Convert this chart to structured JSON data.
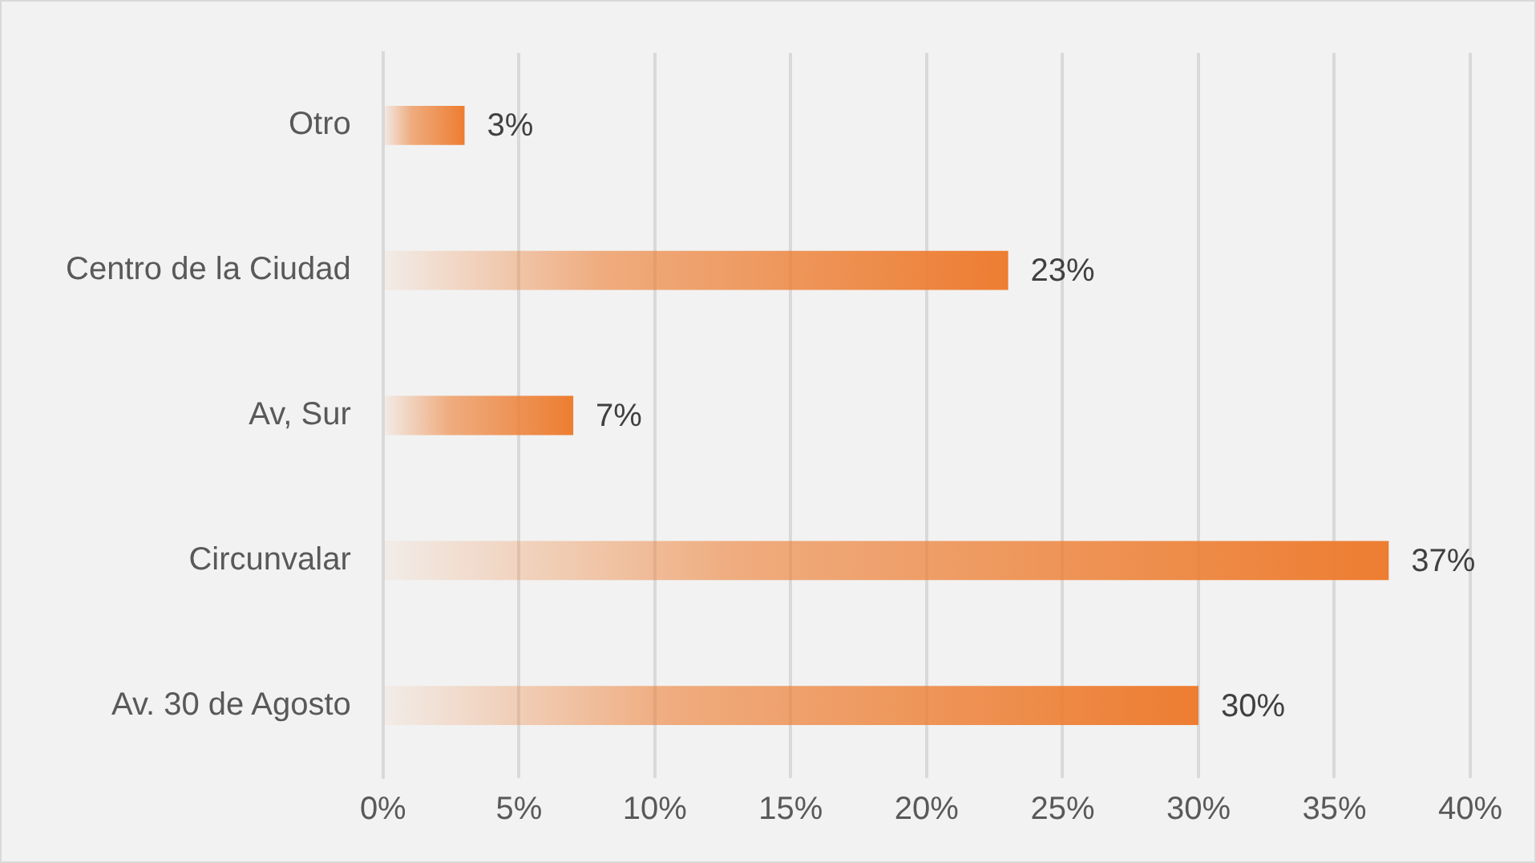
{
  "chart_data": {
    "type": "bar",
    "orientation": "horizontal",
    "categories": [
      "Otro",
      "Centro de la Ciudad",
      "Av, Sur",
      "Circunvalar",
      "Av. 30 de Agosto"
    ],
    "values": [
      3,
      23,
      7,
      37,
      30
    ],
    "value_labels": [
      "3%",
      "23%",
      "7%",
      "37%",
      "30%"
    ],
    "color": "#ed7d31",
    "xlim": [
      0,
      40
    ],
    "xticks": [
      {
        "value": 0,
        "label": "0%"
      },
      {
        "value": 5,
        "label": "5%"
      },
      {
        "value": 10,
        "label": "10%"
      },
      {
        "value": 15,
        "label": "15%"
      },
      {
        "value": 20,
        "label": "20%"
      },
      {
        "value": 25,
        "label": "25%"
      },
      {
        "value": 30,
        "label": "30%"
      },
      {
        "value": 35,
        "label": "35%"
      },
      {
        "value": 40,
        "label": "40%"
      }
    ],
    "grid": "x",
    "legend": false
  }
}
